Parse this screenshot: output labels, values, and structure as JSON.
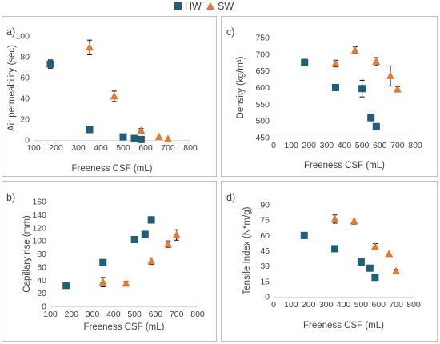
{
  "legend": {
    "hw": {
      "label": "HW",
      "color": "#1f5f78"
    },
    "sw": {
      "label": "SW",
      "color": "#e07b39"
    }
  },
  "chart_data": [
    {
      "type": "scatter",
      "panel_label": "a)",
      "xlabel": "Freeness CSF (mL)",
      "ylabel": "Air permeability (sec)",
      "xlim": [
        100,
        800
      ],
      "ylim": [
        0,
        100
      ],
      "xticks": [
        "100",
        "200",
        "300",
        "400",
        "500",
        "600",
        "700",
        "800"
      ],
      "yticks": [
        "0",
        "20",
        "40",
        "60",
        "80",
        "100"
      ],
      "series": [
        {
          "name": "HW",
          "marker": "square",
          "x": [
            175,
            350,
            500,
            550,
            580
          ],
          "y": [
            73,
            10,
            3,
            1.5,
            0.5
          ],
          "err": [
            4,
            0,
            0,
            0,
            0
          ]
        },
        {
          "name": "SW",
          "marker": "triangle",
          "x": [
            350,
            460,
            580,
            660,
            700
          ],
          "y": [
            89,
            42,
            9,
            3,
            1
          ],
          "err": [
            7,
            5,
            2,
            0,
            0
          ]
        }
      ]
    },
    {
      "type": "scatter",
      "panel_label": "c)",
      "xlabel": "Freeness CSF (mL)",
      "ylabel": "Density (kg/m³)",
      "xlim": [
        0,
        800
      ],
      "ylim": [
        450,
        750
      ],
      "xticks": [
        "0",
        "100",
        "200",
        "300",
        "400",
        "500",
        "600",
        "700",
        "800"
      ],
      "yticks": [
        "450",
        "500",
        "550",
        "600",
        "650",
        "700",
        "750"
      ],
      "series": [
        {
          "name": "HW",
          "marker": "square",
          "x": [
            175,
            350,
            500,
            550,
            580
          ],
          "y": [
            675,
            600,
            597,
            510,
            483
          ],
          "err": [
            10,
            0,
            25,
            10,
            0
          ]
        },
        {
          "name": "SW",
          "marker": "triangle",
          "x": [
            350,
            460,
            580,
            660,
            700
          ],
          "y": [
            672,
            712,
            678,
            635,
            595
          ],
          "err": [
            10,
            10,
            12,
            30,
            8
          ]
        }
      ]
    },
    {
      "type": "scatter",
      "panel_label": "b)",
      "xlabel": "Freeness CSF (mL)",
      "ylabel": "Capillary rise (mm)",
      "xlim": [
        100,
        800
      ],
      "ylim": [
        0,
        160
      ],
      "xticks": [
        "100",
        "200",
        "300",
        "400",
        "500",
        "600",
        "700",
        "800"
      ],
      "yticks": [
        "0",
        "20",
        "40",
        "60",
        "80",
        "100",
        "120",
        "140",
        "160"
      ],
      "series": [
        {
          "name": "HW",
          "marker": "square",
          "x": [
            175,
            350,
            500,
            550,
            580
          ],
          "y": [
            32,
            67,
            102,
            110,
            132
          ],
          "err": [
            0,
            0,
            0,
            4,
            5
          ]
        },
        {
          "name": "SW",
          "marker": "triangle",
          "x": [
            350,
            460,
            580,
            660,
            700
          ],
          "y": [
            37,
            35,
            69,
            95,
            109
          ],
          "err": [
            7,
            3,
            5,
            5,
            8
          ]
        }
      ]
    },
    {
      "type": "scatter",
      "panel_label": "d)",
      "xlabel": "Freeness CSF (mL)",
      "ylabel": "Tensile Index (N*m/g)",
      "xlim": [
        0,
        800
      ],
      "ylim": [
        0,
        90
      ],
      "xticks": [
        "0",
        "100",
        "200",
        "300",
        "400",
        "500",
        "600",
        "700",
        "800"
      ],
      "yticks": [
        "0",
        "15",
        "30",
        "45",
        "60",
        "75",
        "90"
      ],
      "series": [
        {
          "name": "HW",
          "marker": "square",
          "x": [
            175,
            350,
            500,
            550,
            580
          ],
          "y": [
            60,
            47,
            34,
            28,
            19
          ],
          "err": [
            3,
            3,
            0,
            0,
            0
          ]
        },
        {
          "name": "SW",
          "marker": "triangle",
          "x": [
            350,
            460,
            580,
            660,
            700
          ],
          "y": [
            76,
            74,
            49,
            42,
            25
          ],
          "err": [
            4,
            3,
            3,
            0,
            2
          ]
        }
      ]
    }
  ]
}
